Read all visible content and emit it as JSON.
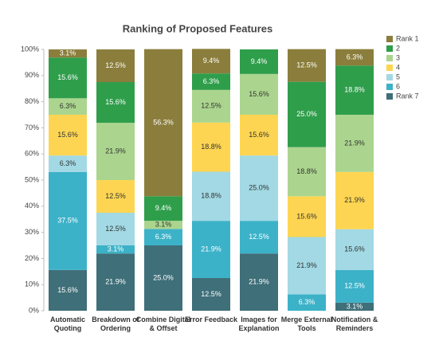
{
  "chart_data": {
    "type": "stacked_bar_100",
    "title": "Ranking of Proposed Features",
    "categories": [
      "Automatic Quoting",
      "Breakdown of Ordering",
      "Combine Digital & Offset",
      "Error Feedback",
      "Images for Explanation",
      "Merge External Tools",
      "Notification & Reminders"
    ],
    "ylim": [
      0,
      100
    ],
    "yticks": [
      {
        "value": 0,
        "label": "0%"
      },
      {
        "value": 10,
        "label": "10%"
      },
      {
        "value": 20,
        "label": "20%"
      },
      {
        "value": 30,
        "label": "30%"
      },
      {
        "value": 40,
        "label": "40%"
      },
      {
        "value": 50,
        "label": "50%"
      },
      {
        "value": 60,
        "label": "60%"
      },
      {
        "value": 70,
        "label": "70%"
      },
      {
        "value": 80,
        "label": "80%"
      },
      {
        "value": 90,
        "label": "90%"
      },
      {
        "value": 100,
        "label": "100%"
      }
    ],
    "legend": "right",
    "series": [
      {
        "name": "Rank 7",
        "color": "#3f6f79",
        "values": [
          15.6,
          21.9,
          25.0,
          12.5,
          21.9,
          0,
          3.1
        ],
        "value_labels": [
          "15.6%",
          "21.9%",
          "25.0%",
          "12.5%",
          "21.9%",
          null,
          "3.1%"
        ]
      },
      {
        "name": "6",
        "color": "#3cb2c8",
        "values": [
          37.5,
          3.1,
          6.3,
          21.9,
          12.5,
          6.3,
          12.5
        ],
        "value_labels": [
          "37.5%",
          "3.1%",
          "6.3%",
          "21.9%",
          "12.5%",
          "6.3%",
          "12.5%"
        ]
      },
      {
        "name": "5",
        "color": "#a2d9e4",
        "values": [
          6.3,
          12.5,
          0,
          18.8,
          25.0,
          21.9,
          15.6
        ],
        "value_labels": [
          "6.3%",
          "12.5%",
          null,
          "18.8%",
          "25.0%",
          "21.9%",
          "15.6%"
        ]
      },
      {
        "name": "4",
        "color": "#fdd552",
        "values": [
          15.6,
          12.5,
          0,
          18.8,
          15.6,
          15.6,
          21.9
        ],
        "value_labels": [
          "15.6%",
          "12.5%",
          null,
          "18.8%",
          "15.6%",
          "15.6%",
          "21.9%"
        ]
      },
      {
        "name": "3",
        "color": "#abd58e",
        "values": [
          6.3,
          21.9,
          3.1,
          12.5,
          15.6,
          18.8,
          21.9
        ],
        "value_labels": [
          "6.3%",
          "21.9%",
          "3.1%",
          "12.5%",
          "15.6%",
          "18.8%",
          "21.9%"
        ]
      },
      {
        "name": "2",
        "color": "#2f9e4b",
        "values": [
          15.6,
          15.6,
          9.4,
          6.3,
          9.4,
          25.0,
          18.8
        ],
        "value_labels": [
          "15.6%",
          "15.6%",
          "9.4%",
          "6.3%",
          "9.4%",
          "25.0%",
          "18.8%"
        ]
      },
      {
        "name": "Rank 1",
        "color": "#8b7e3c",
        "values": [
          3.1,
          12.5,
          56.3,
          9.4,
          0,
          12.5,
          6.3
        ],
        "value_labels": [
          "3.1%",
          "12.5%",
          "56.3%",
          "9.4%",
          null,
          "12.5%",
          "6.3%"
        ]
      }
    ]
  }
}
